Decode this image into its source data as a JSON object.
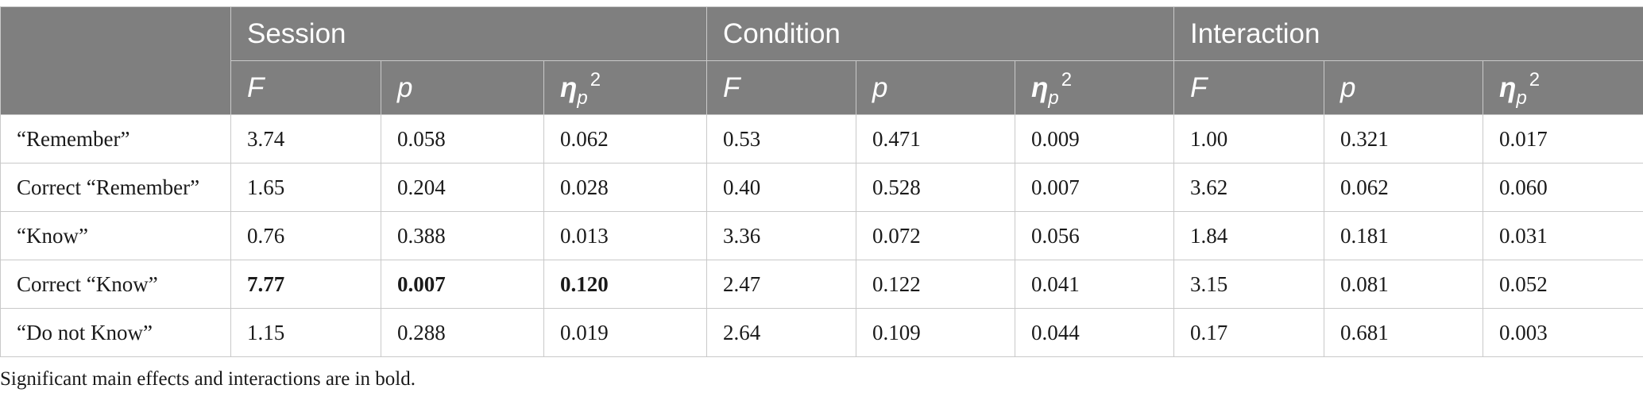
{
  "table": {
    "groups": [
      "Session",
      "Condition",
      "Interaction"
    ],
    "stat_headers": {
      "F": "F",
      "p": "p",
      "eta_symbol": "η",
      "eta_sub": "p",
      "eta_sup": "2"
    },
    "rows": [
      {
        "label": "“Remember”",
        "values": [
          "3.74",
          "0.058",
          "0.062",
          "0.53",
          "0.471",
          "0.009",
          "1.00",
          "0.321",
          "0.017"
        ]
      },
      {
        "label": "Correct “Remember”",
        "values": [
          "1.65",
          "0.204",
          "0.028",
          "0.40",
          "0.528",
          "0.007",
          "3.62",
          "0.062",
          "0.060"
        ]
      },
      {
        "label": "“Know”",
        "values": [
          "0.76",
          "0.388",
          "0.013",
          "3.36",
          "0.072",
          "0.056",
          "1.84",
          "0.181",
          "0.031"
        ]
      },
      {
        "label": "Correct “Know”",
        "values": [
          "7.77",
          "0.007",
          "0.120",
          "2.47",
          "0.122",
          "0.041",
          "3.15",
          "0.081",
          "0.052"
        ]
      },
      {
        "label": "“Do not Know”",
        "values": [
          "1.15",
          "0.288",
          "0.019",
          "2.64",
          "0.109",
          "0.044",
          "0.17",
          "0.681",
          "0.003"
        ]
      }
    ]
  },
  "footnote": "Significant main effects and interactions are in bold.",
  "colors": {
    "header_bg": "#7f7f7f",
    "header_text": "#ffffff",
    "grid": "#c9c9c9"
  }
}
